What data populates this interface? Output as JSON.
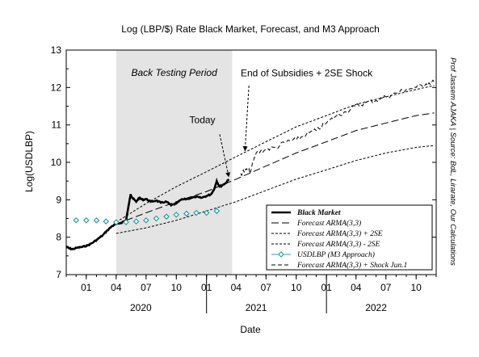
{
  "chart_data": {
    "type": "line",
    "title": "Log (LBP/$) Rate Black Market, Forecast, and M3 Approach",
    "xlabel": "Date",
    "ylabel": "Log(USDLBP)",
    "ylim": [
      7,
      13
    ],
    "yticks": [
      "7",
      "8",
      "9",
      "10",
      "11",
      "12",
      "13"
    ],
    "xlim": [
      "2019-11-01",
      "2022-12-01"
    ],
    "month_ticks": [
      {
        "date": "2020-01-01",
        "label": "01"
      },
      {
        "date": "2020-04-01",
        "label": "04"
      },
      {
        "date": "2020-07-01",
        "label": "07"
      },
      {
        "date": "2020-10-01",
        "label": "10"
      },
      {
        "date": "2021-01-01",
        "label": "01"
      },
      {
        "date": "2021-04-01",
        "label": "04"
      },
      {
        "date": "2021-07-01",
        "label": "07"
      },
      {
        "date": "2021-10-01",
        "label": "10"
      },
      {
        "date": "2022-01-01",
        "label": "01"
      },
      {
        "date": "2022-04-01",
        "label": "04"
      },
      {
        "date": "2022-07-01",
        "label": "07"
      },
      {
        "date": "2022-10-01",
        "label": "10"
      }
    ],
    "year_labels": [
      {
        "date": "2020-06-15",
        "label": "2020"
      },
      {
        "date": "2021-06-01",
        "label": "2021"
      },
      {
        "date": "2022-06-01",
        "label": "2022"
      }
    ],
    "shaded_region": {
      "start": "2020-04-01",
      "end": "2021-03-20",
      "label": "Back Testing Period",
      "color": "#e4e4e4"
    },
    "annotations": [
      {
        "text": "Today",
        "text_at": [
          "2020-11-10",
          11.05
        ],
        "arrow_from": [
          "2021-02-10",
          10.75
        ],
        "arrow_to": [
          "2021-03-10",
          9.6
        ]
      },
      {
        "text": "End of Subsidies + 2SE Shock",
        "text_at": [
          "2021-04-15",
          12.3
        ],
        "arrow_from": [
          "2021-05-10",
          12.05
        ],
        "arrow_to": [
          "2021-04-28",
          10.3
        ]
      }
    ],
    "series": [
      {
        "name": "Black Market",
        "style": "solid-bold",
        "points": [
          [
            "2019-11-01",
            7.75
          ],
          [
            "2019-11-10",
            7.7
          ],
          [
            "2019-11-20",
            7.68
          ],
          [
            "2019-12-05",
            7.72
          ],
          [
            "2019-12-20",
            7.74
          ],
          [
            "2020-01-05",
            7.78
          ],
          [
            "2020-01-20",
            7.85
          ],
          [
            "2020-02-05",
            7.95
          ],
          [
            "2020-02-20",
            8.05
          ],
          [
            "2020-03-05",
            8.18
          ],
          [
            "2020-03-20",
            8.3
          ],
          [
            "2020-04-01",
            8.35
          ],
          [
            "2020-04-15",
            8.38
          ],
          [
            "2020-05-01",
            8.45
          ],
          [
            "2020-05-10",
            8.9
          ],
          [
            "2020-05-15",
            9.15
          ],
          [
            "2020-05-20",
            9.05
          ],
          [
            "2020-06-01",
            8.95
          ],
          [
            "2020-06-10",
            9.05
          ],
          [
            "2020-06-20",
            9.0
          ],
          [
            "2020-07-01",
            9.02
          ],
          [
            "2020-07-15",
            8.95
          ],
          [
            "2020-08-01",
            8.98
          ],
          [
            "2020-08-15",
            8.92
          ],
          [
            "2020-09-01",
            8.95
          ],
          [
            "2020-09-15",
            8.85
          ],
          [
            "2020-10-01",
            8.9
          ],
          [
            "2020-10-15",
            9.0
          ],
          [
            "2020-11-01",
            9.02
          ],
          [
            "2020-11-15",
            9.05
          ],
          [
            "2020-12-01",
            9.08
          ],
          [
            "2020-12-15",
            9.05
          ],
          [
            "2021-01-01",
            9.1
          ],
          [
            "2021-01-15",
            9.15
          ],
          [
            "2021-01-25",
            9.3
          ],
          [
            "2021-02-01",
            9.5
          ],
          [
            "2021-02-10",
            9.35
          ],
          [
            "2021-02-20",
            9.4
          ],
          [
            "2021-03-01",
            9.45
          ],
          [
            "2021-03-10",
            9.55
          ]
        ]
      },
      {
        "name": "Forecast  ARMA(3,3)",
        "style": "dash",
        "points": [
          [
            "2020-04-01",
            8.35
          ],
          [
            "2020-07-01",
            8.65
          ],
          [
            "2020-10-01",
            8.95
          ],
          [
            "2021-01-01",
            9.22
          ],
          [
            "2021-04-01",
            9.55
          ],
          [
            "2021-07-01",
            9.9
          ],
          [
            "2021-10-01",
            10.25
          ],
          [
            "2022-01-01",
            10.55
          ],
          [
            "2022-04-01",
            10.85
          ],
          [
            "2022-07-01",
            11.05
          ],
          [
            "2022-10-01",
            11.25
          ],
          [
            "2022-11-25",
            11.32
          ]
        ]
      },
      {
        "name": "Forecast  ARMA(3,3) + 2SE",
        "style": "short-dash",
        "points": [
          [
            "2020-04-01",
            8.4
          ],
          [
            "2020-07-01",
            8.9
          ],
          [
            "2020-10-01",
            9.35
          ],
          [
            "2021-01-01",
            9.75
          ],
          [
            "2021-04-01",
            10.15
          ],
          [
            "2021-07-01",
            10.55
          ],
          [
            "2021-10-01",
            10.95
          ],
          [
            "2022-01-01",
            11.25
          ],
          [
            "2022-04-01",
            11.55
          ],
          [
            "2022-07-01",
            11.75
          ],
          [
            "2022-10-01",
            11.95
          ],
          [
            "2022-11-25",
            12.05
          ]
        ]
      },
      {
        "name": "Forecast  ARMA(3,3) - 2SE",
        "style": "short-dash",
        "points": [
          [
            "2020-04-01",
            8.1
          ],
          [
            "2020-07-01",
            8.25
          ],
          [
            "2020-10-01",
            8.45
          ],
          [
            "2021-01-01",
            8.7
          ],
          [
            "2021-04-01",
            8.95
          ],
          [
            "2021-07-01",
            9.25
          ],
          [
            "2021-10-01",
            9.55
          ],
          [
            "2022-01-01",
            9.8
          ],
          [
            "2022-04-01",
            10.05
          ],
          [
            "2022-07-01",
            10.25
          ],
          [
            "2022-10-01",
            10.4
          ],
          [
            "2022-11-25",
            10.45
          ]
        ]
      },
      {
        "name": "USDLBP (M3 Approach)",
        "style": "diamond-markers",
        "points": [
          [
            "2019-12-01",
            8.45
          ],
          [
            "2020-01-01",
            8.45
          ],
          [
            "2020-02-01",
            8.45
          ],
          [
            "2020-03-01",
            8.42
          ],
          [
            "2020-04-01",
            8.4
          ],
          [
            "2020-05-01",
            8.4
          ],
          [
            "2020-06-01",
            8.42
          ],
          [
            "2020-07-01",
            8.45
          ],
          [
            "2020-08-01",
            8.5
          ],
          [
            "2020-09-01",
            8.55
          ],
          [
            "2020-10-01",
            8.6
          ],
          [
            "2020-11-01",
            8.63
          ],
          [
            "2020-12-01",
            8.65
          ],
          [
            "2021-01-01",
            8.65
          ],
          [
            "2021-02-01",
            8.7
          ]
        ]
      },
      {
        "name": "Forecast  ARMA(3,3) + Shock Jun.1",
        "style": "noisy-dash",
        "points": [
          [
            "2021-04-15",
            9.7
          ],
          [
            "2021-05-01",
            9.8
          ],
          [
            "2021-05-15",
            9.75
          ],
          [
            "2021-06-01",
            10.25
          ],
          [
            "2021-07-01",
            10.35
          ],
          [
            "2021-08-01",
            10.4
          ],
          [
            "2021-09-01",
            10.55
          ],
          [
            "2021-10-01",
            10.6
          ],
          [
            "2021-11-01",
            10.75
          ],
          [
            "2021-12-01",
            10.85
          ],
          [
            "2022-01-01",
            11.05
          ],
          [
            "2022-02-01",
            11.25
          ],
          [
            "2022-03-01",
            11.35
          ],
          [
            "2022-04-01",
            11.5
          ],
          [
            "2022-05-01",
            11.6
          ],
          [
            "2022-06-01",
            11.65
          ],
          [
            "2022-07-01",
            11.75
          ],
          [
            "2022-08-01",
            11.85
          ],
          [
            "2022-09-01",
            11.95
          ],
          [
            "2022-10-01",
            12.0
          ],
          [
            "2022-11-01",
            12.1
          ],
          [
            "2022-11-25",
            12.15
          ]
        ]
      }
    ],
    "legend_position": "lower-right",
    "side_note": "Prof Jassem AJAKA  |  Source: BdL, Lirarate, Our Calculations",
    "colors": {
      "shade": "#e4e4e4",
      "marker": "#2aa198",
      "line": "#000000"
    }
  }
}
